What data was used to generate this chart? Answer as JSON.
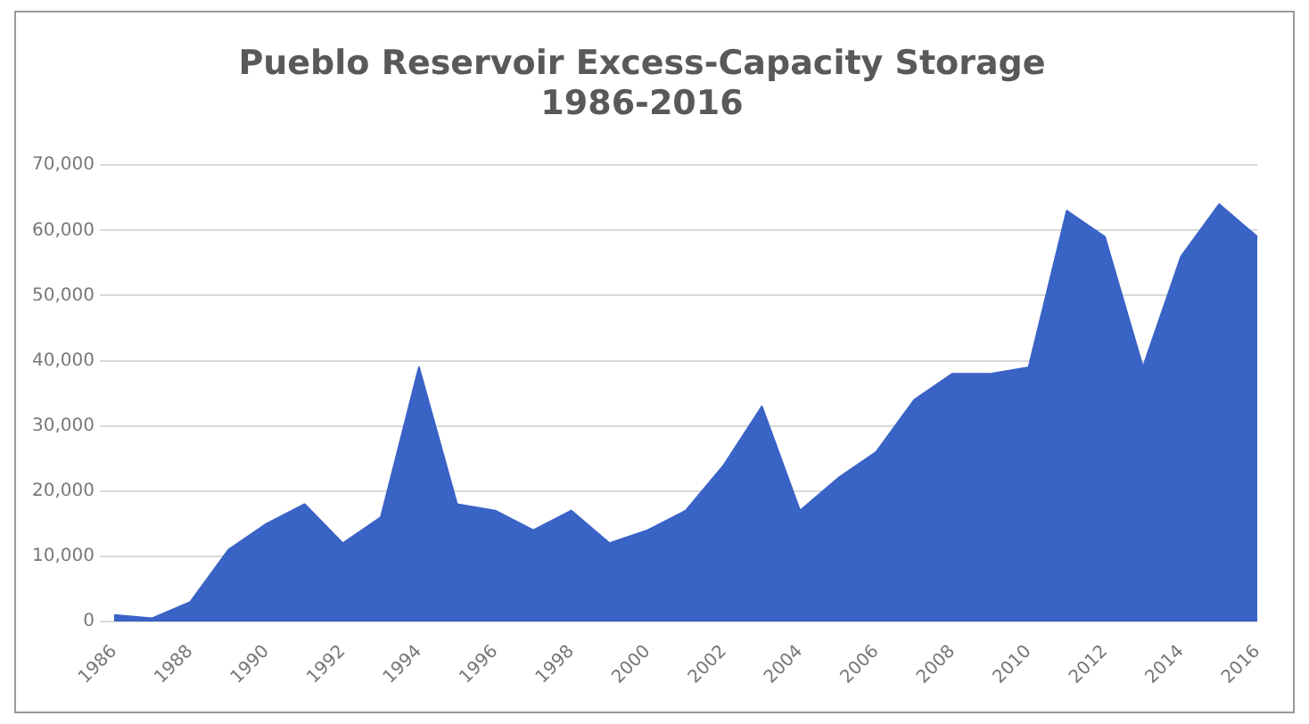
{
  "chart_data": {
    "type": "area",
    "title": "Pueblo Reservoir Excess-Capacity Storage\n1986-2016",
    "categories": [
      "1986",
      null,
      "1988",
      null,
      "1990",
      null,
      "1992",
      null,
      "1994",
      null,
      "1996",
      null,
      "1998",
      null,
      "2000",
      null,
      "2002",
      null,
      "2004",
      null,
      "2006",
      null,
      "2008",
      null,
      "2010",
      null,
      "2012",
      null,
      "2014",
      null,
      "2016"
    ],
    "series": [
      {
        "color": "#3a63c6",
        "values": [
          1000,
          500,
          3000,
          11000,
          15000,
          18000,
          12000,
          16000,
          39000,
          18000,
          17000,
          14000,
          17000,
          12000,
          14000,
          17000,
          24000,
          33000,
          17000,
          22000,
          26000,
          34000,
          38000,
          38000,
          39000,
          63000,
          59000,
          39000,
          56000,
          64000,
          59000
        ]
      }
    ],
    "ylim": [
      0,
      70000
    ],
    "yticks": [
      0,
      {
        "value": 10000,
        "label": "10,000"
      },
      {
        "value": 20000,
        "label": "20,000"
      },
      {
        "value": 30000,
        "label": "30,000"
      },
      {
        "value": 40000,
        "label": "40,000"
      },
      {
        "value": 50000,
        "label": "50,000"
      },
      {
        "value": 60000,
        "label": "60,000"
      },
      {
        "value": 70000,
        "label": "70,000"
      }
    ],
    "grid": "y",
    "legend": false
  }
}
